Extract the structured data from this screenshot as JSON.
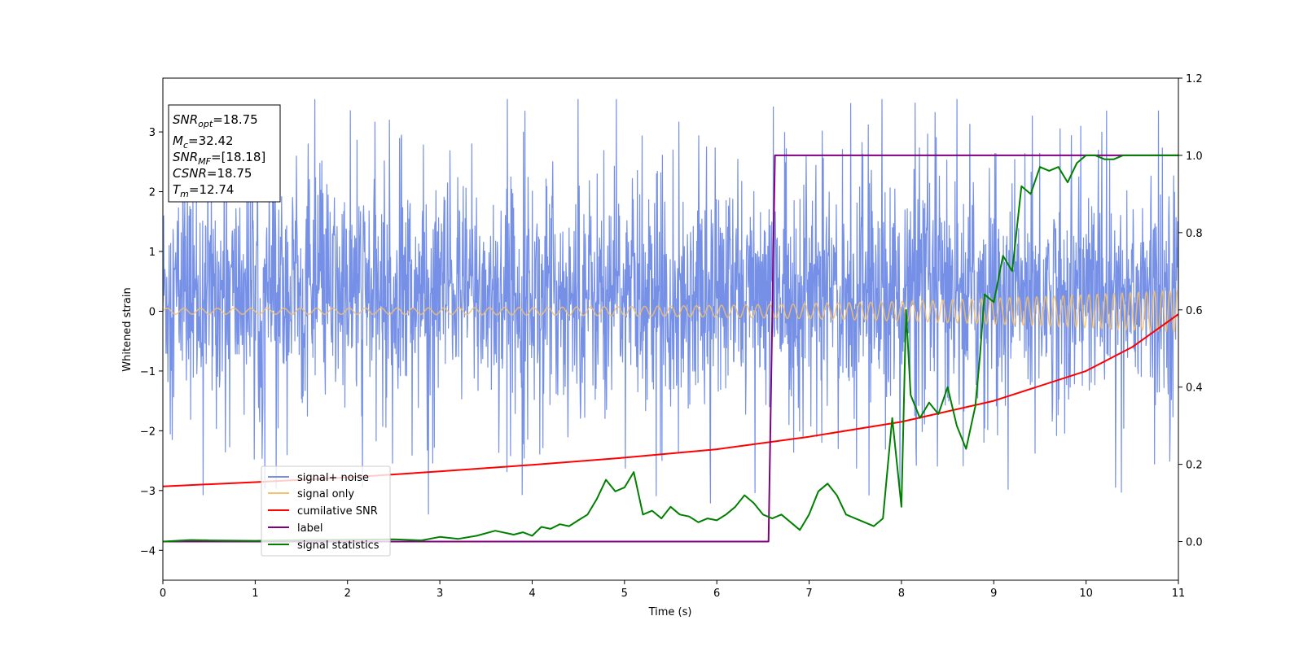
{
  "chart_data": {
    "type": "line",
    "xlabel": "Time (s)",
    "ylabel": "Whitened strain",
    "xlim": [
      0,
      11
    ],
    "ylim_left": [
      -4.5,
      3.9
    ],
    "ylim_right": [
      -0.1,
      1.2
    ],
    "x_ticks": [
      "0",
      "1",
      "2",
      "3",
      "4",
      "5",
      "6",
      "7",
      "8",
      "9",
      "10",
      "11"
    ],
    "y_left_ticks": [
      "−4",
      "−3",
      "−2",
      "−1",
      "0",
      "1",
      "2",
      "3"
    ],
    "y_right_ticks": [
      "0.0",
      "0.2",
      "0.4",
      "0.6",
      "0.8",
      "1.0",
      "1.2"
    ],
    "colors": {
      "signal_noise": "#7590e6",
      "signal_only": "#f5c16a",
      "cumulative_snr": "#ff0000",
      "label": "#800080",
      "signal_statistics": "#008000"
    },
    "info_box": {
      "line1": {
        "sym": "SNR",
        "sub": "opt",
        "val": "=18.75"
      },
      "line2": {
        "sym": "M",
        "sub": "c",
        "val": "=32.42"
      },
      "line3": {
        "sym": "SNR",
        "sub": "MF",
        "val": "=[18.18]"
      },
      "line4": {
        "sym": "CSNR",
        "sub": "",
        "val": "=18.75"
      },
      "line5": {
        "sym": "T",
        "sub": "m",
        "val": "=12.74"
      }
    },
    "legend": [
      "signal+ noise",
      "signal only",
      "cumilative SNR",
      "label",
      "signal statistics"
    ],
    "series": [
      {
        "name": "signal+ noise",
        "axis": "left",
        "description_range": "noise band roughly between -2.5 and 3.5 for the full time span",
        "mean": 0.3,
        "spread": 1.1
      },
      {
        "name": "signal only",
        "axis": "left",
        "amplitude_start": 0.05,
        "amplitude_end": 0.35,
        "freq_start_hz": 5.5,
        "freq_end_hz": 12
      },
      {
        "name": "cumilative SNR",
        "axis": "left",
        "x": [
          0,
          1,
          2,
          3,
          4,
          5,
          6,
          7,
          8,
          9,
          10,
          10.5,
          11
        ],
        "y": [
          -2.93,
          -2.86,
          -2.78,
          -2.68,
          -2.57,
          -2.45,
          -2.31,
          -2.1,
          -1.85,
          -1.5,
          -1.0,
          -0.6,
          -0.05
        ]
      },
      {
        "name": "label",
        "axis": "right",
        "x": [
          0,
          6.56,
          6.63,
          11
        ],
        "y": [
          0.0,
          0.0,
          1.0,
          1.0
        ]
      },
      {
        "name": "signal statistics",
        "axis": "right",
        "x": [
          0,
          0.3,
          0.5,
          1,
          1.5,
          2,
          2.5,
          2.8,
          3.0,
          3.2,
          3.4,
          3.6,
          3.8,
          3.9,
          4.0,
          4.1,
          4.2,
          4.3,
          4.4,
          4.5,
          4.6,
          4.7,
          4.8,
          4.9,
          5.0,
          5.1,
          5.2,
          5.3,
          5.4,
          5.5,
          5.6,
          5.7,
          5.8,
          5.9,
          6.0,
          6.1,
          6.2,
          6.3,
          6.4,
          6.5,
          6.6,
          6.7,
          6.8,
          6.9,
          7.0,
          7.1,
          7.2,
          7.3,
          7.4,
          7.5,
          7.6,
          7.7,
          7.8,
          7.9,
          8.0,
          8.05,
          8.1,
          8.2,
          8.3,
          8.4,
          8.5,
          8.6,
          8.7,
          8.8,
          8.85,
          8.9,
          9.0,
          9.1,
          9.2,
          9.3,
          9.4,
          9.5,
          9.6,
          9.7,
          9.8,
          9.9,
          10.0,
          10.1,
          10.2,
          10.3,
          10.4,
          10.6,
          10.8,
          11.0
        ],
        "y": [
          0.0,
          0.004,
          0.003,
          0.002,
          0.004,
          0.005,
          0.006,
          0.003,
          0.012,
          0.007,
          0.015,
          0.028,
          0.018,
          0.024,
          0.015,
          0.038,
          0.033,
          0.045,
          0.04,
          0.055,
          0.07,
          0.11,
          0.16,
          0.13,
          0.14,
          0.18,
          0.07,
          0.08,
          0.06,
          0.09,
          0.07,
          0.065,
          0.05,
          0.06,
          0.055,
          0.07,
          0.09,
          0.12,
          0.1,
          0.07,
          0.06,
          0.07,
          0.05,
          0.03,
          0.07,
          0.13,
          0.15,
          0.12,
          0.07,
          0.06,
          0.05,
          0.04,
          0.06,
          0.32,
          0.09,
          0.6,
          0.38,
          0.32,
          0.36,
          0.33,
          0.4,
          0.3,
          0.24,
          0.35,
          0.48,
          0.64,
          0.62,
          0.74,
          0.7,
          0.92,
          0.9,
          0.97,
          0.96,
          0.97,
          0.93,
          0.98,
          1.0,
          1.0,
          0.99,
          0.99,
          1.0,
          1.0,
          1.0,
          1.0
        ]
      }
    ]
  }
}
